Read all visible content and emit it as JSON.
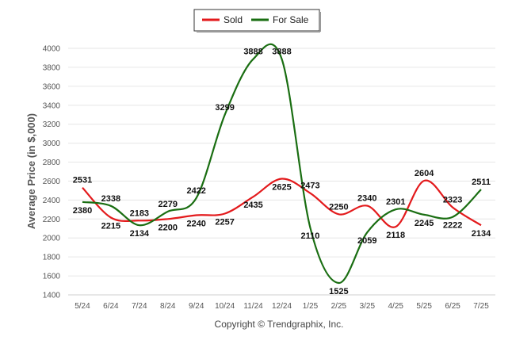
{
  "chart_data": {
    "type": "line",
    "categories": [
      "5/24",
      "6/24",
      "7/24",
      "8/24",
      "9/24",
      "10/24",
      "11/24",
      "12/24",
      "1/25",
      "2/25",
      "3/25",
      "4/25",
      "5/25",
      "6/25",
      "7/25"
    ],
    "series": [
      {
        "name": "Sold",
        "color": "#e31a1c",
        "values": [
          2531,
          2215,
          2183,
          2200,
          2240,
          2257,
          2435,
          2625,
          2473,
          2250,
          2340,
          2118,
          2604,
          2323,
          2134
        ]
      },
      {
        "name": "For Sale",
        "color": "#1a6e12",
        "values": [
          2380,
          2338,
          2134,
          2279,
          2422,
          3299,
          3888,
          3888,
          2110,
          1525,
          2059,
          2301,
          2245,
          2222,
          2511
        ]
      }
    ],
    "ylabel": "Average Price (in $,000)",
    "xlabel": "",
    "ylim": [
      1400,
      4000
    ],
    "yticks": [
      1400,
      1600,
      1800,
      2000,
      2200,
      2400,
      2600,
      2800,
      3000,
      3200,
      3400,
      3600,
      3800,
      4000
    ],
    "grid": true,
    "legend_position": "top-center"
  },
  "footer": {
    "copyright": "Copyright © Trendgraphix, Inc."
  }
}
